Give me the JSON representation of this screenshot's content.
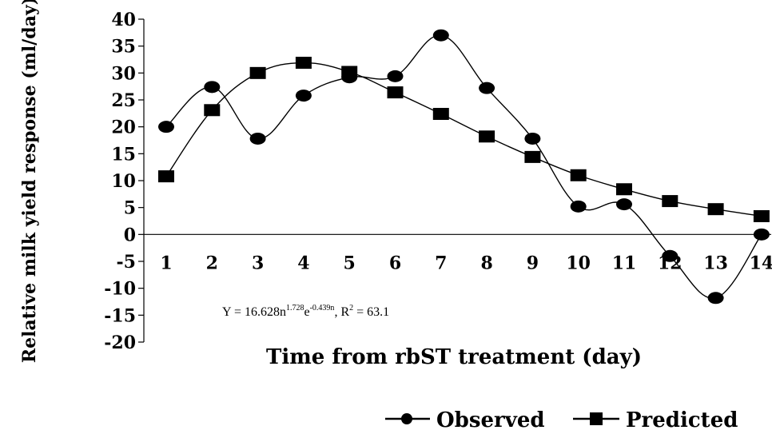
{
  "chart_data": {
    "type": "line",
    "xlabel": "Time from rbST treatment (day)",
    "ylabel": "Relative milk yield response (ml/day)",
    "x": [
      1,
      2,
      3,
      4,
      5,
      6,
      7,
      8,
      9,
      10,
      11,
      12,
      13,
      14
    ],
    "ylim": [
      -20,
      40
    ],
    "yticks": [
      -20,
      -15,
      -10,
      -5,
      0,
      5,
      10,
      15,
      20,
      25,
      30,
      35,
      40
    ],
    "grid": false,
    "legend_position": "bottom",
    "series": [
      {
        "name": "Observed",
        "marker": "circle",
        "values": [
          20,
          27.4,
          17.8,
          25.8,
          29.2,
          29.4,
          37,
          27.2,
          17.8,
          5.2,
          5.6,
          -4,
          -11.8,
          0
        ]
      },
      {
        "name": "Predicted",
        "marker": "square",
        "values": [
          10.8,
          23.1,
          30,
          31.9,
          30.2,
          26.4,
          22.4,
          18.2,
          14.4,
          11,
          8.4,
          6.2,
          4.7,
          3.4
        ]
      }
    ],
    "annotation": {
      "prefix": "Y = 16.628n",
      "sup1": "1.728",
      "mid": "e",
      "sup2": "-0.439n",
      "r2_label": ", R",
      "sup3": "2",
      "suffix": " = 63.1"
    }
  }
}
